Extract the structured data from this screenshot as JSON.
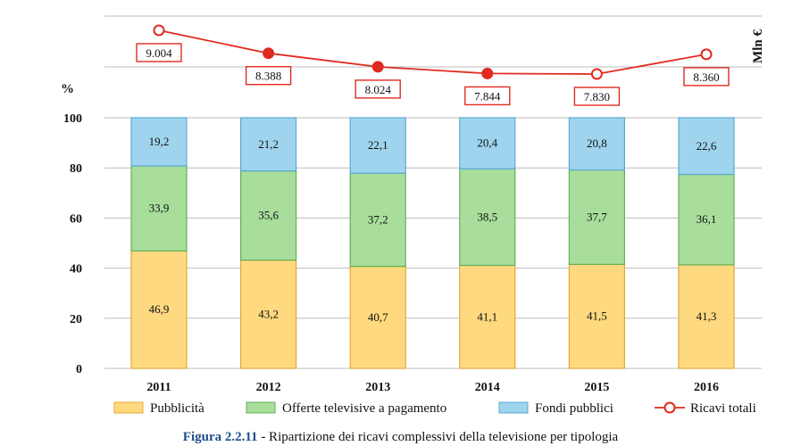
{
  "chart_data": {
    "type": "bar",
    "stacked": true,
    "categories": [
      "2011",
      "2012",
      "2013",
      "2014",
      "2015",
      "2016"
    ],
    "ylabel": "%",
    "y2label": "Mln €",
    "ylim": [
      0,
      100
    ],
    "yticks": [
      "0",
      "20",
      "40",
      "60",
      "80",
      "100"
    ],
    "grid": true,
    "legend_position": "bottom",
    "series": [
      {
        "name": "Pubblicità",
        "color": "#ffd97f",
        "stroke": "#e0a93a",
        "values": [
          46.9,
          43.2,
          40.7,
          41.1,
          41.5,
          41.3
        ],
        "labels": [
          "46,9",
          "43,2",
          "40,7",
          "41,1",
          "41,5",
          "41,3"
        ]
      },
      {
        "name": "Offerte televisive a pagamento",
        "color": "#a8dd9c",
        "stroke": "#63b05a",
        "values": [
          33.9,
          35.6,
          37.2,
          38.5,
          37.7,
          36.1
        ],
        "labels": [
          "33,9",
          "35,6",
          "37,2",
          "38,5",
          "37,7",
          "36,1"
        ]
      },
      {
        "name": "Fondi pubblici",
        "color": "#9fd4ee",
        "stroke": "#5aaad4",
        "values": [
          19.2,
          21.2,
          22.1,
          20.4,
          20.8,
          22.6
        ],
        "labels": [
          "19,2",
          "21,2",
          "22,1",
          "20,4",
          "20,8",
          "22,6"
        ]
      }
    ],
    "line_series": {
      "name": "Ricavi totali",
      "color": "#e02b20",
      "values": [
        9004,
        8388,
        8024,
        7844,
        7830,
        8360
      ],
      "labels": [
        "9.004",
        "8.388",
        "8.024",
        "7.844",
        "7.830",
        "8.360"
      ],
      "hollow_markers": [
        true,
        false,
        false,
        false,
        true,
        true
      ]
    }
  },
  "caption": {
    "figure": "Figura 2.2.11",
    "text": " - Ripartizione dei ricavi complessivi della televisione per tipologia"
  }
}
